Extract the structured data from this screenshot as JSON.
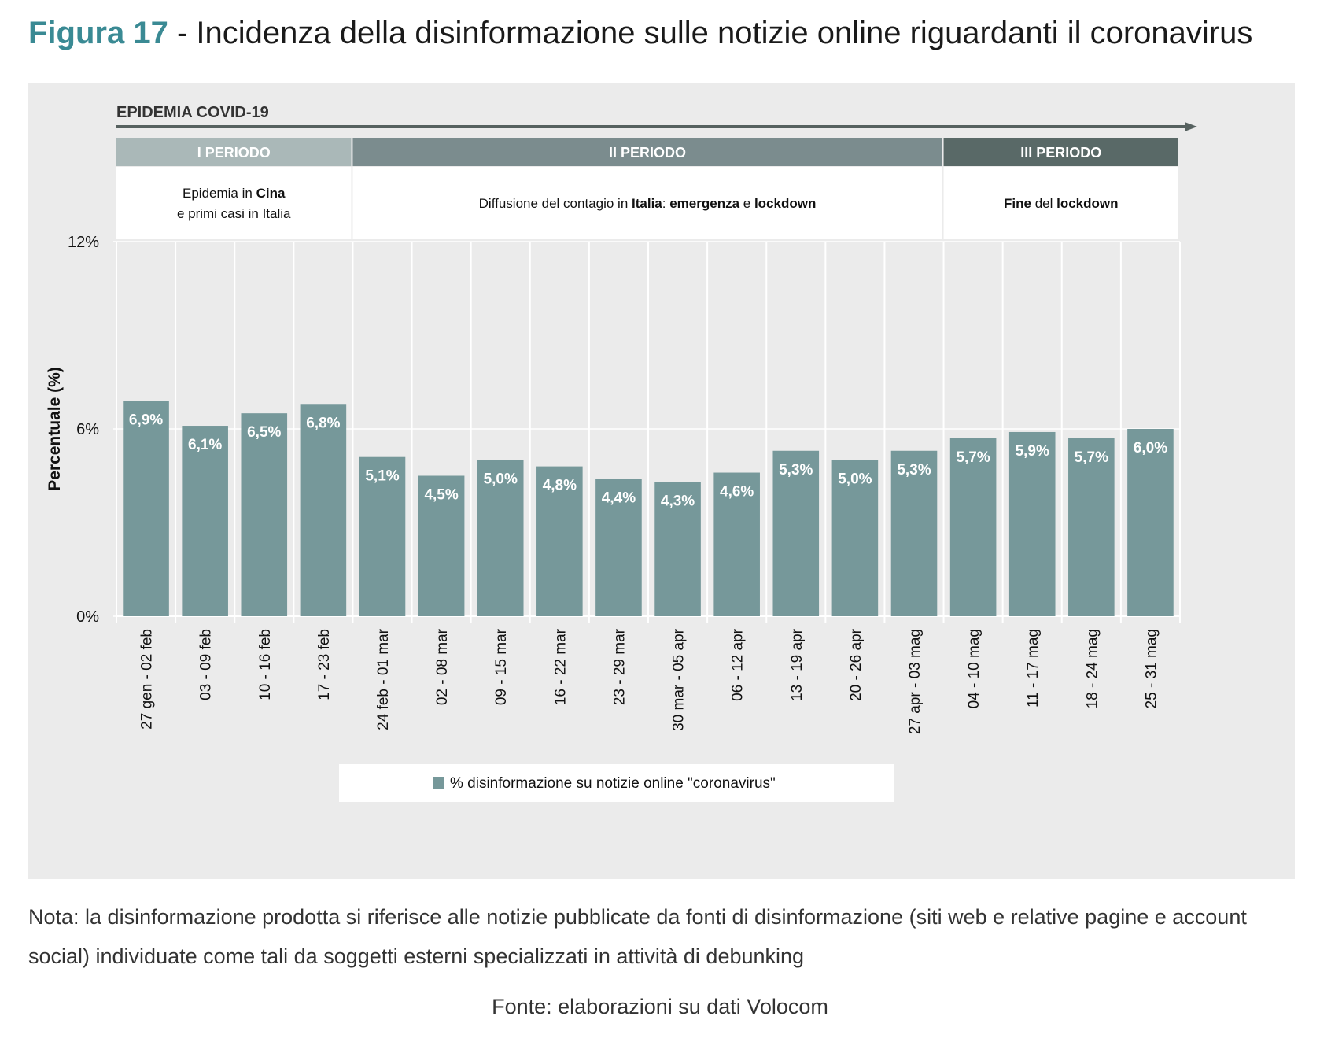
{
  "figure": {
    "number": "Figura 17",
    "title": "- Incidenza della disinformazione sulle notizie online riguardanti il coronavirus"
  },
  "timeline": {
    "label": "EPIDEMIA COVID-19",
    "periods": [
      {
        "name": "I PERIODO",
        "header_color": "#aab8b8",
        "lines": [
          [
            {
              "t": "Epidemia in ",
              "b": false
            },
            {
              "t": "Cina",
              "b": true
            }
          ],
          [
            {
              "t": "e primi casi in Italia",
              "b": false
            }
          ]
        ],
        "first_bar": 0,
        "last_bar": 3
      },
      {
        "name": "II PERIODO",
        "header_color": "#7b8c8e",
        "lines": [
          [
            {
              "t": "Diffusione del contagio in ",
              "b": false
            },
            {
              "t": "Italia",
              "b": true
            },
            {
              "t": ": ",
              "b": false
            },
            {
              "t": "emergenza",
              "b": true
            },
            {
              "t": " e ",
              "b": false
            },
            {
              "t": "lockdown",
              "b": true
            }
          ]
        ],
        "first_bar": 4,
        "last_bar": 13
      },
      {
        "name": "III PERIODO",
        "header_color": "#596967",
        "lines": [
          [
            {
              "t": "Fine",
              "b": true
            },
            {
              "t": " del ",
              "b": false
            },
            {
              "t": "lockdown",
              "b": true
            }
          ]
        ],
        "first_bar": 14,
        "last_bar": 17
      }
    ]
  },
  "chart_data": {
    "type": "bar",
    "categories": [
      "27 gen - 02 feb",
      "03 - 09 feb",
      "10 - 16 feb",
      "17 - 23 feb",
      "24 feb - 01 mar",
      "02 - 08 mar",
      "09 - 15 mar",
      "16 - 22 mar",
      "23 - 29 mar",
      "30 mar - 05 apr",
      "06 - 12 apr",
      "13 - 19 apr",
      "20 - 26 apr",
      "27 apr - 03 mag",
      "04 - 10 mag",
      "11 - 17 mag",
      "18 - 24 mag",
      "25 - 31 mag"
    ],
    "values": [
      6.9,
      6.1,
      6.5,
      6.8,
      5.1,
      4.5,
      5.0,
      4.8,
      4.4,
      4.3,
      4.6,
      5.3,
      5.0,
      5.3,
      5.7,
      5.9,
      5.7,
      6.0
    ],
    "data_labels": [
      "6,9%",
      "6,1%",
      "6,5%",
      "6,8%",
      "5,1%",
      "4,5%",
      "5,0%",
      "4,8%",
      "4,4%",
      "4,3%",
      "4,6%",
      "5,3%",
      "5,0%",
      "5,3%",
      "5,7%",
      "5,9%",
      "5,7%",
      "6,0%"
    ],
    "ylabel": "Percentuale (%)",
    "ylim": [
      0,
      12
    ],
    "yticks": [
      0,
      6,
      12
    ],
    "ytick_labels": [
      "0%",
      "6%",
      "12%"
    ],
    "grid": "vertical",
    "bar_color": "#76989a",
    "legend": {
      "position": "bottom",
      "entries": [
        {
          "name": "% disinformazione su notizie online \"coronavirus\"",
          "color": "#76989a"
        }
      ]
    }
  },
  "note": "Nota: la disinformazione prodotta si riferisce alle notizie pubblicate da fonti di disinformazione (siti web e relative pagine e account social) individuate come tali da soggetti esterni specializzati in attività di debunking",
  "source": "Fonte: elaborazioni su dati Volocom"
}
